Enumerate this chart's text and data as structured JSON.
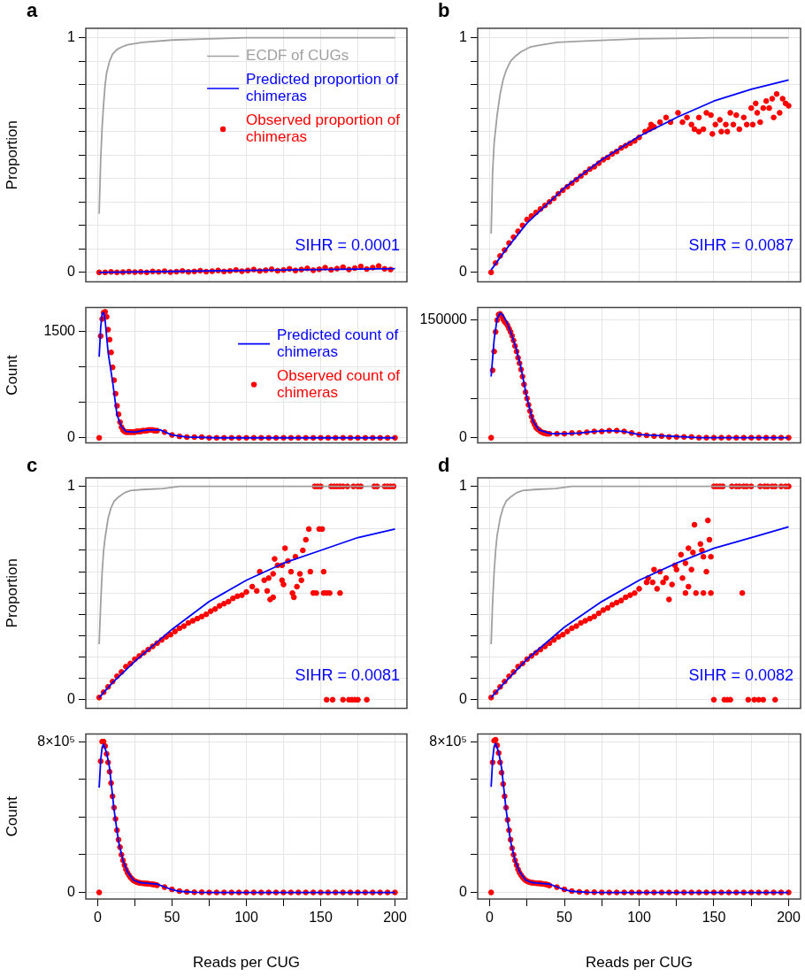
{
  "chart_data": [
    {
      "type": "line",
      "title": "a",
      "ylabel": "Proportion",
      "xlim": [
        -8,
        208
      ],
      "ylim": [
        -0.04,
        1.04
      ],
      "xticks": [
        0,
        {
          "value": 25,
          "label": null
        },
        50,
        {
          "value": 75,
          "label": null
        },
        100,
        {
          "value": 125,
          "label": null
        },
        150,
        {
          "value": 175,
          "label": null
        },
        200
      ],
      "yticks": [
        0,
        {
          "value": 0.1,
          "label": null
        },
        {
          "value": 0.2,
          "label": null
        },
        {
          "value": 0.3,
          "label": null
        },
        {
          "value": 0.4,
          "label": null
        },
        {
          "value": 0.5,
          "label": null
        },
        {
          "value": 0.6,
          "label": null
        },
        {
          "value": 0.7,
          "label": null
        },
        {
          "value": 0.8,
          "label": null
        },
        {
          "value": 0.9,
          "label": null
        },
        1
      ],
      "tick_labels": "y",
      "grid": true,
      "legend": "top right",
      "annotations": [
        "SIHR = 0.0001"
      ],
      "series": [
        {
          "name": "ECDF of CUGs",
          "color": "#a0a0a0",
          "marker": "none",
          "x": [
            1,
            2,
            3,
            4,
            5,
            6,
            8,
            10,
            13,
            16,
            20,
            30,
            50,
            75,
            100,
            150,
            200
          ],
          "values": [
            0.25,
            0.48,
            0.62,
            0.72,
            0.8,
            0.85,
            0.9,
            0.93,
            0.95,
            0.96,
            0.97,
            0.98,
            0.99,
            0.995,
            1,
            1,
            1
          ]
        },
        {
          "name": "Predicted proportion of chimeras",
          "color": "#0000ff",
          "marker": "none",
          "x": [
            1,
            50,
            100,
            150,
            200
          ],
          "values": [
            0,
            0.004,
            0.008,
            0.012,
            0.016
          ]
        },
        {
          "name": "Observed proportion of chimeras",
          "type": "scatter",
          "color": "#ff0000",
          "marker": "circle",
          "x": [
            1,
            5,
            9,
            13,
            17,
            21,
            25,
            29,
            33,
            37,
            41,
            45,
            49,
            53,
            57,
            61,
            65,
            69,
            73,
            77,
            81,
            85,
            89,
            93,
            97,
            101,
            105,
            109,
            113,
            117,
            121,
            125,
            129,
            133,
            137,
            141,
            145,
            149,
            153,
            157,
            161,
            165,
            169,
            173,
            177,
            181,
            185,
            189,
            193,
            197
          ],
          "values": [
            0,
            0,
            0.002,
            0,
            0.001,
            0.003,
            0.001,
            0.002,
            0,
            0.004,
            0.002,
            0.005,
            0.001,
            0.003,
            0.006,
            0.002,
            0.004,
            0.007,
            0.003,
            0.005,
            0.008,
            0.004,
            0.006,
            0.01,
            0.005,
            0.008,
            0.012,
            0.006,
            0.009,
            0.013,
            0.007,
            0.01,
            0.015,
            0.008,
            0.012,
            0.017,
            0.009,
            0.013,
            0.02,
            0.011,
            0.016,
            0.022,
            0.012,
            0.018,
            0.025,
            0.014,
            0.02,
            0.027,
            0.015,
            0.012
          ]
        }
      ]
    },
    {
      "type": "line",
      "ylabel": "Count",
      "xlim": [
        -8,
        208
      ],
      "ylim": [
        -70,
        1830
      ],
      "xticks": [
        0,
        {
          "value": 25,
          "label": null
        },
        50,
        {
          "value": 75,
          "label": null
        },
        100,
        {
          "value": 125,
          "label": null
        },
        150,
        {
          "value": 175,
          "label": null
        },
        200
      ],
      "yticks": [
        0,
        {
          "value": 500,
          "label": null
        },
        {
          "value": 1000,
          "label": null
        },
        1500
      ],
      "tick_labels": "y",
      "grid": true,
      "legend": "top right",
      "series": [
        {
          "name": "Predicted count of chimeras",
          "color": "#0000ff",
          "marker": "none",
          "x": [
            1,
            2,
            3,
            4,
            5,
            7,
            10,
            13,
            16,
            19,
            25,
            33,
            42,
            50,
            60,
            80,
            120,
            200
          ],
          "values": [
            1140,
            1550,
            1740,
            1760,
            1650,
            1200,
            790,
            320,
            160,
            90,
            80,
            110,
            110,
            40,
            10,
            0,
            0,
            0
          ]
        },
        {
          "name": "Observed count of chimeras",
          "type": "scatter",
          "color": "#ff0000",
          "marker": "circle",
          "x": [
            1,
            2,
            3,
            4,
            5,
            6,
            7,
            8,
            9,
            10,
            11,
            12,
            13,
            14,
            15,
            16,
            17,
            18,
            19,
            20,
            21,
            22,
            23,
            24,
            25,
            26,
            27,
            28,
            29,
            30,
            31,
            32,
            33,
            34,
            35,
            36,
            37,
            38,
            39,
            40,
            45,
            50,
            55,
            60,
            65,
            70,
            75,
            80,
            85,
            90,
            95,
            100,
            105,
            110,
            115,
            120,
            125,
            130,
            135,
            140,
            145,
            150,
            155,
            160,
            165,
            170,
            175,
            180,
            185,
            190,
            195,
            200
          ],
          "values": [
            0,
            1430,
            1670,
            1760,
            1770,
            1700,
            1520,
            1380,
            1200,
            990,
            810,
            620,
            450,
            330,
            220,
            150,
            110,
            90,
            80,
            80,
            80,
            80,
            80,
            80,
            80,
            90,
            90,
            90,
            90,
            100,
            100,
            100,
            100,
            110,
            110,
            110,
            110,
            100,
            100,
            100,
            80,
            40,
            20,
            10,
            10,
            10,
            0,
            0,
            0,
            0,
            0,
            0,
            0,
            0,
            0,
            0,
            0,
            0,
            0,
            0,
            0,
            0,
            0,
            0,
            0,
            0,
            0,
            0,
            0,
            0,
            0,
            0
          ]
        }
      ]
    },
    {
      "type": "line",
      "title": "b",
      "xlim": [
        -8,
        208
      ],
      "ylim": [
        -0.04,
        1.04
      ],
      "xticks": [
        0,
        {
          "value": 25,
          "label": null
        },
        50,
        {
          "value": 75,
          "label": null
        },
        100,
        {
          "value": 125,
          "label": null
        },
        150,
        {
          "value": 175,
          "label": null
        },
        200
      ],
      "yticks": [
        0,
        {
          "value": 0.1,
          "label": null
        },
        {
          "value": 0.2,
          "label": null
        },
        {
          "value": 0.3,
          "label": null
        },
        {
          "value": 0.4,
          "label": null
        },
        {
          "value": 0.5,
          "label": null
        },
        {
          "value": 0.6,
          "label": null
        },
        {
          "value": 0.7,
          "label": null
        },
        {
          "value": 0.8,
          "label": null
        },
        {
          "value": 0.9,
          "label": null
        },
        1
      ],
      "tick_labels": "y",
      "grid": true,
      "annotations": [
        "SIHR = 0.0087"
      ],
      "series": [
        {
          "color": "#a0a0a0",
          "marker": "none",
          "x": [
            1,
            2,
            3,
            5,
            7,
            9,
            11,
            14,
            17,
            21,
            27,
            35,
            45,
            60,
            100,
            150,
            200
          ],
          "values": [
            0.165,
            0.43,
            0.55,
            0.67,
            0.76,
            0.82,
            0.86,
            0.9,
            0.92,
            0.94,
            0.96,
            0.97,
            0.98,
            0.985,
            0.995,
            1,
            1
          ]
        },
        {
          "color": "#0000ff",
          "marker": "none",
          "x": [
            1,
            10,
            25,
            50,
            75,
            100,
            125,
            150,
            175,
            200
          ],
          "values": [
            0.01,
            0.09,
            0.21,
            0.36,
            0.48,
            0.58,
            0.66,
            0.73,
            0.78,
            0.82
          ]
        },
        {
          "type": "scatter",
          "color": "#ff0000",
          "marker": "circle",
          "x": [
            1,
            4,
            7,
            10,
            13,
            16,
            19,
            22,
            25,
            28,
            31,
            34,
            37,
            40,
            43,
            46,
            49,
            52,
            55,
            58,
            61,
            64,
            67,
            70,
            73,
            76,
            79,
            82,
            85,
            88,
            91,
            94,
            97,
            100,
            104,
            107,
            108,
            110,
            114,
            118,
            121,
            126,
            129,
            132,
            135,
            137,
            140,
            140,
            143,
            145,
            148,
            149,
            151,
            154,
            155,
            158,
            159,
            161,
            163,
            165,
            167,
            170,
            172,
            175,
            176,
            178,
            179,
            181,
            183,
            185,
            187,
            189,
            190,
            192,
            194,
            196,
            198,
            200
          ],
          "values": [
            0,
            0.04,
            0.07,
            0.095,
            0.125,
            0.15,
            0.175,
            0.2,
            0.225,
            0.24,
            0.255,
            0.27,
            0.285,
            0.3,
            0.315,
            0.335,
            0.35,
            0.365,
            0.38,
            0.395,
            0.41,
            0.425,
            0.44,
            0.45,
            0.465,
            0.48,
            0.49,
            0.505,
            0.515,
            0.53,
            0.54,
            0.55,
            0.56,
            0.575,
            0.6,
            0.61,
            0.63,
            0.62,
            0.64,
            0.66,
            0.64,
            0.68,
            0.64,
            0.66,
            0.63,
            0.61,
            0.66,
            0.6,
            0.61,
            0.68,
            0.67,
            0.59,
            0.63,
            0.65,
            0.6,
            0.63,
            0.6,
            0.68,
            0.63,
            0.67,
            0.61,
            0.66,
            0.63,
            0.7,
            0.63,
            0.72,
            0.68,
            0.64,
            0.7,
            0.73,
            0.7,
            0.74,
            0.66,
            0.76,
            0.68,
            0.74,
            0.72,
            0.71
          ]
        }
      ]
    },
    {
      "type": "line",
      "xlim": [
        -8,
        208
      ],
      "ylim": [
        -6500,
        166000
      ],
      "xticks": [
        0,
        {
          "value": 25,
          "label": null
        },
        50,
        {
          "value": 75,
          "label": null
        },
        100,
        {
          "value": 125,
          "label": null
        },
        150,
        {
          "value": 175,
          "label": null
        },
        200
      ],
      "yticks": [
        0,
        {
          "value": 50000,
          "label": null
        },
        {
          "value": 100000,
          "label": null
        },
        150000
      ],
      "tick_labels": "y",
      "grid": true,
      "series": [
        {
          "color": "#0000ff",
          "marker": "none",
          "x": [
            1,
            3,
            5,
            7,
            9,
            12,
            15,
            18,
            21,
            25,
            29,
            33,
            41,
            50,
            60,
            70,
            80,
            90,
            100,
            120,
            140,
            170,
            200
          ],
          "values": [
            78000,
            125000,
            152000,
            159000,
            156000,
            145000,
            130000,
            112000,
            89000,
            50000,
            21000,
            10000,
            5000,
            5000,
            6000,
            8000,
            9000,
            8000,
            4000,
            2000,
            0,
            0,
            0
          ]
        },
        {
          "type": "scatter",
          "color": "#ff0000",
          "marker": "circle",
          "x": [
            1,
            2,
            3,
            4,
            5,
            6,
            7,
            8,
            9,
            10,
            11,
            12,
            13,
            14,
            15,
            16,
            17,
            18,
            19,
            20,
            21,
            22,
            23,
            24,
            25,
            26,
            27,
            28,
            29,
            30,
            31,
            32,
            33,
            34,
            35,
            36,
            37,
            38,
            39,
            40,
            45,
            50,
            55,
            60,
            65,
            70,
            75,
            80,
            85,
            90,
            95,
            100,
            105,
            110,
            115,
            120,
            125,
            130,
            135,
            140,
            145,
            150,
            155,
            160,
            165,
            170,
            175,
            180,
            185,
            190,
            195,
            200
          ],
          "values": [
            0,
            86000,
            110000,
            135000,
            150000,
            157000,
            158000,
            155000,
            151000,
            148000,
            146000,
            143000,
            139000,
            135000,
            130000,
            124000,
            117000,
            110000,
            102000,
            95000,
            87000,
            78000,
            68000,
            58000,
            50000,
            42000,
            34000,
            27000,
            21000,
            17000,
            13000,
            11000,
            10000,
            8000,
            7000,
            6000,
            6000,
            5000,
            5000,
            5000,
            5000,
            5000,
            6000,
            6000,
            7000,
            8000,
            8000,
            9000,
            9000,
            8000,
            6000,
            4000,
            3000,
            2000,
            2000,
            1000,
            1000,
            1000,
            1000,
            0,
            0,
            0,
            0,
            0,
            0,
            0,
            0,
            0,
            0,
            0,
            0,
            0
          ]
        }
      ]
    },
    {
      "type": "line",
      "title": "c",
      "ylabel": "Proportion",
      "xlim": [
        -8,
        208
      ],
      "ylim": [
        -0.04,
        1.04
      ],
      "xticks": [
        0,
        {
          "value": 25,
          "label": null
        },
        50,
        {
          "value": 75,
          "label": null
        },
        100,
        {
          "value": 125,
          "label": null
        },
        150,
        {
          "value": 175,
          "label": null
        },
        200
      ],
      "yticks": [
        0,
        {
          "value": 0.1,
          "label": null
        },
        {
          "value": 0.2,
          "label": null
        },
        {
          "value": 0.3,
          "label": null
        },
        {
          "value": 0.4,
          "label": null
        },
        {
          "value": 0.5,
          "label": null
        },
        {
          "value": 0.6,
          "label": null
        },
        {
          "value": 0.7,
          "label": null
        },
        {
          "value": 0.8,
          "label": null
        },
        {
          "value": 0.9,
          "label": null
        },
        1
      ],
      "tick_labels": "y",
      "grid": true,
      "annotations": [
        "SIHR = 0.0081"
      ],
      "series": [
        {
          "color": "#a0a0a0",
          "marker": "none",
          "x": [
            1,
            2,
            3,
            4,
            5,
            7,
            9,
            11,
            14,
            18,
            22,
            30,
            44,
            55,
            100,
            200
          ],
          "values": [
            0.26,
            0.45,
            0.6,
            0.7,
            0.76,
            0.85,
            0.9,
            0.93,
            0.95,
            0.97,
            0.98,
            0.985,
            0.99,
            1,
            1,
            1
          ]
        },
        {
          "color": "#0000ff",
          "marker": "none",
          "x": [
            1,
            10,
            25,
            50,
            75,
            100,
            125,
            150,
            175,
            200
          ],
          "values": [
            0.01,
            0.08,
            0.18,
            0.33,
            0.46,
            0.56,
            0.64,
            0.7,
            0.76,
            0.8
          ]
        },
        {
          "type": "scatter",
          "color": "#ff0000",
          "marker": "circle",
          "x": [
            1,
            4,
            7,
            10,
            13,
            16,
            19,
            22,
            25,
            28,
            31,
            34,
            37,
            40,
            43,
            46,
            49,
            52,
            55,
            58,
            61,
            64,
            67,
            70,
            73,
            76,
            79,
            82,
            85,
            88,
            91,
            94,
            97,
            100,
            104,
            107,
            109,
            112,
            114,
            115,
            116,
            118,
            118,
            119,
            121,
            124,
            124,
            125,
            126,
            128,
            130,
            131,
            132,
            133,
            134,
            136,
            137,
            138,
            140,
            142,
            143,
            145,
            146,
            147,
            148,
            149,
            150,
            151,
            152,
            152,
            154,
            154,
            156,
            157,
            158,
            159,
            161,
            163,
            163,
            165,
            165,
            168,
            169,
            171,
            172,
            173,
            175,
            175,
            177,
            181,
            186,
            188,
            193,
            195,
            197,
            199
          ],
          "values": [
            0.01,
            0.035,
            0.06,
            0.085,
            0.11,
            0.13,
            0.155,
            0.17,
            0.19,
            0.205,
            0.22,
            0.235,
            0.25,
            0.265,
            0.28,
            0.295,
            0.305,
            0.32,
            0.335,
            0.345,
            0.36,
            0.37,
            0.38,
            0.39,
            0.4,
            0.415,
            0.425,
            0.44,
            0.45,
            0.46,
            0.475,
            0.485,
            0.49,
            0.505,
            0.53,
            0.51,
            0.6,
            0.56,
            0.51,
            0.57,
            0.47,
            0.59,
            0.48,
            0.66,
            0.63,
            0.63,
            0.56,
            0.54,
            0.71,
            0.65,
            0.6,
            0.5,
            0.48,
            0.67,
            0.53,
            0.59,
            0.56,
            0.7,
            0.75,
            0.8,
            0.6,
            0.5,
            1,
            0.5,
            1,
            0.8,
            1,
            0.8,
            0.5,
            0.6,
            0.5,
            0,
            0.5,
            1,
            0,
            1,
            1,
            0.5,
            1,
            1,
            0,
            1,
            0,
            0,
            1,
            0,
            1,
            0,
            1,
            0,
            1,
            1,
            1,
            1,
            1,
            1
          ]
        }
      ]
    },
    {
      "type": "line",
      "ylabel": "Count",
      "xlabel": "Reads per CUG",
      "xlim": [
        -8,
        208
      ],
      "ylim": [
        -35000,
        840000
      ],
      "xticks": [
        0,
        {
          "value": 25,
          "label": null
        },
        50,
        {
          "value": 75,
          "label": null
        },
        100,
        {
          "value": 125,
          "label": null
        },
        150,
        {
          "value": 175,
          "label": null
        },
        200
      ],
      "yticks": [
        0,
        {
          "value": 200000,
          "label": null
        },
        {
          "value": 400000,
          "label": null
        },
        {
          "value": 600000,
          "label": null
        },
        {
          "value": 800000,
          "label": "8×10⁵"
        }
      ],
      "grid": true,
      "series": [
        {
          "color": "#0000ff",
          "marker": "none",
          "x": [
            1,
            2,
            3,
            4,
            6,
            8,
            11,
            14,
            17,
            20,
            24,
            28,
            31,
            40,
            46,
            50,
            55,
            65,
            80,
            120,
            200
          ],
          "values": [
            556000,
            700000,
            770000,
            786000,
            740000,
            660000,
            440000,
            270000,
            170000,
            110000,
            66000,
            53000,
            50000,
            44000,
            26000,
            15000,
            6000,
            1000,
            0,
            0,
            0
          ]
        },
        {
          "type": "scatter",
          "color": "#ff0000",
          "marker": "circle",
          "x": [
            1,
            2,
            3,
            4,
            5,
            6,
            7,
            8,
            9,
            10,
            11,
            12,
            13,
            14,
            15,
            16,
            17,
            18,
            19,
            20,
            21,
            22,
            23,
            24,
            25,
            26,
            27,
            28,
            29,
            30,
            31,
            32,
            33,
            34,
            35,
            36,
            37,
            38,
            39,
            40,
            45,
            50,
            55,
            60,
            65,
            70,
            75,
            80,
            85,
            90,
            95,
            100,
            105,
            110,
            115,
            120,
            125,
            130,
            135,
            140,
            145,
            150,
            155,
            160,
            165,
            170,
            175,
            180,
            185,
            190,
            195,
            200
          ],
          "values": [
            0,
            696000,
            800000,
            800000,
            776000,
            735000,
            690000,
            640000,
            580000,
            510000,
            450000,
            390000,
            330000,
            280000,
            240000,
            200000,
            170000,
            145000,
            122000,
            105000,
            92000,
            80000,
            72000,
            64000,
            60000,
            56000,
            53000,
            51000,
            50000,
            49000,
            48000,
            47000,
            47000,
            46000,
            45000,
            44000,
            43000,
            42000,
            40000,
            38000,
            28000,
            16000,
            7000,
            3000,
            1000,
            1000,
            0,
            0,
            0,
            0,
            0,
            0,
            0,
            0,
            0,
            0,
            0,
            0,
            0,
            0,
            0,
            0,
            0,
            0,
            0,
            0,
            0,
            0,
            0,
            0,
            0,
            0
          ]
        }
      ]
    },
    {
      "type": "line",
      "title": "d",
      "xlim": [
        -8,
        208
      ],
      "ylim": [
        -0.04,
        1.04
      ],
      "xticks": [
        0,
        {
          "value": 25,
          "label": null
        },
        50,
        {
          "value": 75,
          "label": null
        },
        100,
        {
          "value": 125,
          "label": null
        },
        150,
        {
          "value": 175,
          "label": null
        },
        200
      ],
      "yticks": [
        0,
        {
          "value": 0.1,
          "label": null
        },
        {
          "value": 0.2,
          "label": null
        },
        {
          "value": 0.3,
          "label": null
        },
        {
          "value": 0.4,
          "label": null
        },
        {
          "value": 0.5,
          "label": null
        },
        {
          "value": 0.6,
          "label": null
        },
        {
          "value": 0.7,
          "label": null
        },
        {
          "value": 0.8,
          "label": null
        },
        {
          "value": 0.9,
          "label": null
        },
        1
      ],
      "tick_labels": "y",
      "grid": true,
      "annotations": [
        "SIHR = 0.0082"
      ],
      "series": [
        {
          "color": "#a0a0a0",
          "marker": "none",
          "x": [
            1,
            2,
            3,
            4,
            5,
            7,
            9,
            11,
            14,
            18,
            22,
            30,
            44,
            55,
            100,
            200
          ],
          "values": [
            0.26,
            0.46,
            0.6,
            0.7,
            0.77,
            0.85,
            0.9,
            0.93,
            0.95,
            0.97,
            0.98,
            0.985,
            0.99,
            1,
            1,
            1
          ]
        },
        {
          "color": "#0000ff",
          "marker": "none",
          "x": [
            1,
            10,
            25,
            50,
            75,
            100,
            125,
            150,
            175,
            200
          ],
          "values": [
            0.01,
            0.08,
            0.19,
            0.34,
            0.46,
            0.56,
            0.64,
            0.71,
            0.76,
            0.81
          ]
        },
        {
          "type": "scatter",
          "color": "#ff0000",
          "marker": "circle",
          "x": [
            1,
            4,
            7,
            10,
            13,
            16,
            19,
            22,
            25,
            28,
            31,
            34,
            37,
            40,
            43,
            46,
            49,
            52,
            55,
            58,
            61,
            64,
            67,
            70,
            73,
            76,
            79,
            82,
            85,
            88,
            91,
            94,
            97,
            100,
            105,
            106,
            109,
            110,
            112,
            114,
            116,
            118,
            120,
            122,
            124,
            125,
            128,
            129,
            131,
            131,
            133,
            133,
            135,
            136,
            137,
            138,
            141,
            142,
            143,
            143,
            145,
            146,
            147,
            148,
            148,
            150,
            150,
            152,
            154,
            156,
            157,
            159,
            161,
            162,
            165,
            167,
            169,
            170,
            172,
            173,
            175,
            177,
            180,
            181,
            183,
            184,
            186,
            189,
            191,
            191,
            195,
            198,
            200
          ],
          "values": [
            0.01,
            0.035,
            0.06,
            0.085,
            0.11,
            0.13,
            0.155,
            0.17,
            0.19,
            0.205,
            0.22,
            0.235,
            0.25,
            0.265,
            0.28,
            0.295,
            0.305,
            0.32,
            0.335,
            0.345,
            0.36,
            0.37,
            0.38,
            0.39,
            0.405,
            0.42,
            0.43,
            0.445,
            0.455,
            0.465,
            0.48,
            0.49,
            0.5,
            0.52,
            0.55,
            0.57,
            0.55,
            0.61,
            0.52,
            0.6,
            0.55,
            0.57,
            0.47,
            0.54,
            0.63,
            0.61,
            0.68,
            0.57,
            0.64,
            0.5,
            0.71,
            0.53,
            0.61,
            0.69,
            0.82,
            0.5,
            0.73,
            0.7,
            0.67,
            0.5,
            0.6,
            0.84,
            0.75,
            0.67,
            0.5,
            1,
            0,
            1,
            1,
            1,
            0,
            0,
            0,
            1,
            1,
            1,
            0.5,
            1,
            1,
            0,
            1,
            0,
            0,
            1,
            0,
            1,
            1,
            1,
            1,
            0,
            1,
            1,
            1
          ]
        }
      ]
    },
    {
      "type": "line",
      "xlabel": "Reads per CUG",
      "xlim": [
        -8,
        208
      ],
      "ylim": [
        -35000,
        840000
      ],
      "xticks": [
        0,
        {
          "value": 25,
          "label": null
        },
        50,
        {
          "value": 75,
          "label": null
        },
        100,
        {
          "value": 125,
          "label": null
        },
        150,
        {
          "value": 175,
          "label": null
        },
        200
      ],
      "yticks": [
        0,
        {
          "value": 200000,
          "label": null
        },
        {
          "value": 400000,
          "label": null
        },
        {
          "value": 600000,
          "label": null
        },
        {
          "value": 800000,
          "label": "8×10⁵"
        }
      ],
      "grid": true,
      "series": [
        {
          "color": "#0000ff",
          "marker": "none",
          "x": [
            1,
            2,
            3,
            4,
            6,
            8,
            11,
            14,
            17,
            20,
            24,
            28,
            31,
            40,
            46,
            50,
            55,
            65,
            80,
            120,
            200
          ],
          "values": [
            560000,
            705000,
            775000,
            790000,
            745000,
            660000,
            440000,
            270000,
            170000,
            110000,
            66000,
            53000,
            50000,
            44000,
            26000,
            15000,
            6000,
            1000,
            0,
            0,
            0
          ]
        },
        {
          "type": "scatter",
          "color": "#ff0000",
          "marker": "circle",
          "x": [
            1,
            2,
            3,
            4,
            5,
            6,
            7,
            8,
            9,
            10,
            11,
            12,
            13,
            14,
            15,
            16,
            17,
            18,
            19,
            20,
            21,
            22,
            23,
            24,
            25,
            26,
            27,
            28,
            29,
            30,
            31,
            32,
            33,
            34,
            35,
            36,
            37,
            38,
            39,
            40,
            45,
            50,
            55,
            60,
            65,
            70,
            75,
            80,
            85,
            90,
            95,
            100,
            105,
            110,
            115,
            120,
            125,
            130,
            135,
            140,
            145,
            150,
            155,
            160,
            165,
            170,
            175,
            180,
            185,
            190,
            195,
            200
          ],
          "values": [
            0,
            690000,
            805000,
            810000,
            780000,
            740000,
            690000,
            635000,
            575000,
            510000,
            450000,
            385000,
            330000,
            280000,
            235000,
            200000,
            170000,
            145000,
            122000,
            105000,
            92000,
            81000,
            72000,
            65000,
            60000,
            56000,
            54000,
            52000,
            51000,
            50000,
            49000,
            48000,
            48000,
            47000,
            46000,
            45000,
            44000,
            42000,
            40000,
            37000,
            28000,
            16000,
            7000,
            3000,
            1000,
            1000,
            0,
            0,
            0,
            0,
            0,
            0,
            0,
            0,
            0,
            0,
            0,
            0,
            0,
            0,
            0,
            0,
            0,
            0,
            0,
            0,
            0,
            0,
            0,
            0,
            0,
            0
          ]
        }
      ]
    }
  ]
}
